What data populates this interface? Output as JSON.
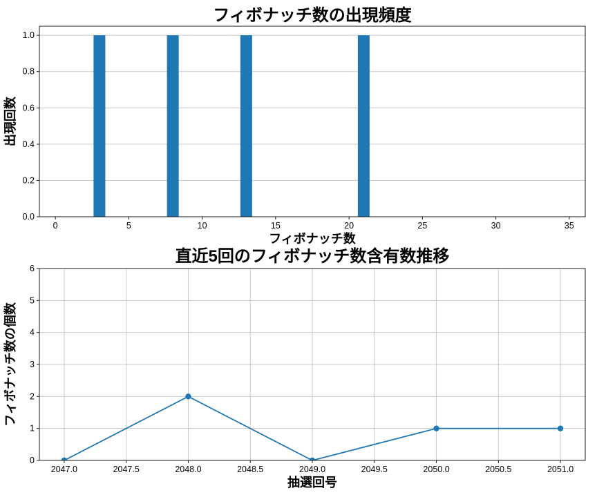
{
  "figure": {
    "background": "#ffffff",
    "accent_color": "#1f77b4",
    "grid_color": "#c8c8c8",
    "spine_color": "#1a1a1a"
  },
  "chart_data": [
    {
      "type": "bar",
      "title": "フィボナッチ数の出現頻度",
      "xlabel": "フィボナッチ数",
      "ylabel": "出現回数",
      "x": [
        1,
        2,
        3,
        5,
        8,
        13,
        21,
        34
      ],
      "values": [
        0,
        0,
        1,
        0,
        1,
        1,
        1,
        0
      ],
      "bar_width": 0.8,
      "bar_color": "#1f77b4",
      "xlim": [
        -1.09,
        36.09
      ],
      "ylim": [
        0,
        1.05
      ],
      "xticks": [
        "0",
        "5",
        "10",
        "15",
        "20",
        "25",
        "30",
        "35"
      ],
      "yticks": [
        "0.0",
        "0.2",
        "0.4",
        "0.6",
        "0.8",
        "1.0"
      ],
      "grid": "y",
      "legend": "none"
    },
    {
      "type": "line",
      "title": "直近5回のフィボナッチ数含有数推移",
      "xlabel": "抽選回号",
      "ylabel": "フィボナッチ数の個数",
      "x": [
        2047,
        2048,
        2049,
        2050,
        2051
      ],
      "values": [
        0,
        2,
        0,
        1,
        1
      ],
      "line_color": "#1f77b4",
      "marker": "circle",
      "xlim": [
        2046.8,
        2051.2
      ],
      "ylim": [
        0,
        6
      ],
      "xticks": [
        "2047.0",
        "2047.5",
        "2048.0",
        "2048.5",
        "2049.0",
        "2049.5",
        "2050.0",
        "2050.5",
        "2051.0"
      ],
      "yticks": [
        "0",
        "1",
        "2",
        "3",
        "4",
        "5",
        "6"
      ],
      "grid": "both",
      "legend": "none"
    }
  ]
}
